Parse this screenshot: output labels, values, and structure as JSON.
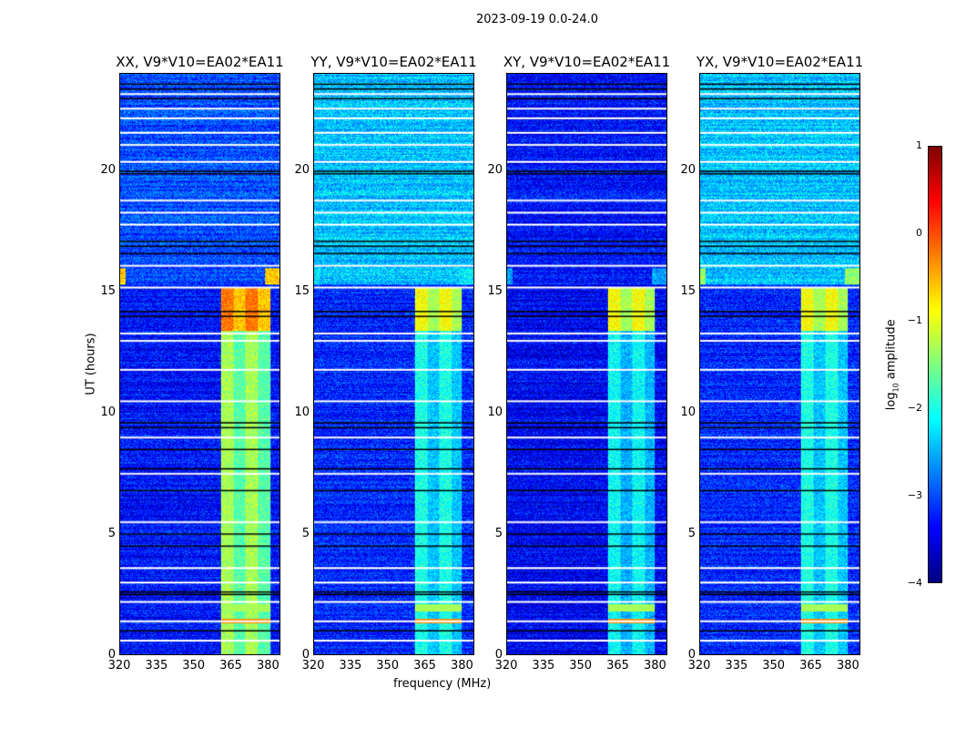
{
  "chart_data": {
    "type": "heatmap",
    "title": "2023-09-19 0.0-24.0",
    "xlabel": "frequency (MHz)",
    "ylabel": "UT (hours)",
    "xlim": [
      320,
      385
    ],
    "ylim": [
      0,
      24
    ],
    "xticks": [
      "320",
      "335",
      "350",
      "365",
      "380"
    ],
    "yticks": [
      "0",
      "5",
      "10",
      "15",
      "20"
    ],
    "colorbar": {
      "label": "log10 amplitude",
      "label_main": "log",
      "label_sub": "10",
      "label_rest": " amplitude",
      "range": [
        -4,
        1
      ],
      "ticks": [
        "1",
        "0",
        "−1",
        "−2",
        "−3",
        "−4"
      ],
      "colormap": "jet"
    },
    "panels": [
      {
        "title": "XX, V9*V10=EA02*EA11",
        "base_level": -3.3,
        "rfi_band_mhz": [
          361,
          381
        ],
        "rfi_level_0_15h": -1.6,
        "rfi_level_13_15h": -0.5,
        "late_level": -3.0,
        "edge_burst_15_16h": -0.6
      },
      {
        "title": "YY, V9*V10=EA02*EA11",
        "base_level": -3.2,
        "rfi_band_mhz": [
          361,
          380
        ],
        "rfi_level_0_15h": -2.3,
        "rfi_level_13_15h": -1.2,
        "late_level": -2.4,
        "edge_burst_15_16h": -2.2
      },
      {
        "title": "XY, V9*V10=EA02*EA11",
        "base_level": -3.4,
        "rfi_band_mhz": [
          361,
          380
        ],
        "rfi_level_0_15h": -2.4,
        "rfi_level_13_15h": -1.2,
        "late_level": -3.3,
        "edge_burst_15_16h": -2.6
      },
      {
        "title": "YX, V9*V10=EA02*EA11",
        "base_level": -3.2,
        "rfi_band_mhz": [
          361,
          380
        ],
        "rfi_level_0_15h": -2.3,
        "rfi_level_13_15h": -1.2,
        "late_level": -2.4,
        "edge_burst_15_16h": -1.4
      }
    ],
    "flagged_hours_white": [
      0.6,
      1.4,
      2.2,
      3.0,
      3.6,
      5.5,
      7.5,
      9.0,
      10.5,
      11.8,
      13.0,
      13.3,
      15.2,
      16.1,
      17.8,
      18.3,
      18.8,
      20.4,
      21.1,
      21.6,
      22.2,
      22.6,
      23.2
    ],
    "flagged_hours_black": [
      1.0,
      2.5,
      2.6,
      4.5,
      5.0,
      6.8,
      7.7,
      8.5,
      9.4,
      9.6,
      14.0,
      14.2,
      16.6,
      16.9,
      17.1,
      19.9,
      20.0,
      23.0,
      23.4,
      23.6
    ]
  }
}
